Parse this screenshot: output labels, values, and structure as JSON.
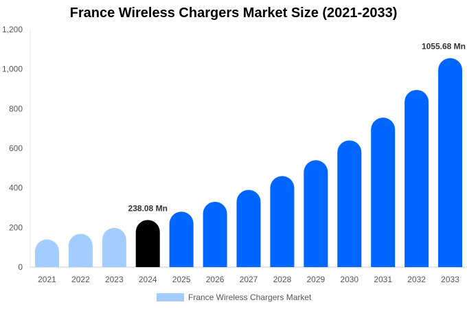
{
  "chart_data": {
    "type": "bar",
    "title": "France Wireless Chargers Market Size (2021-2033)",
    "xlabel": "",
    "ylabel": "",
    "categories": [
      "2021",
      "2022",
      "2023",
      "2024",
      "2025",
      "2026",
      "2027",
      "2028",
      "2029",
      "2030",
      "2031",
      "2032",
      "2033"
    ],
    "series": [
      {
        "name": "France Wireless Chargers Market",
        "values": [
          140,
          168,
          198,
          238.08,
          280,
          330,
          390,
          460,
          540,
          640,
          755,
          895,
          1055.68
        ]
      }
    ],
    "ylim": [
      0,
      1200
    ],
    "yticks": [
      "0",
      "200",
      "400",
      "600",
      "800",
      "1,000",
      "1,200"
    ],
    "ytick_values": [
      0,
      200,
      400,
      600,
      800,
      1000,
      1200
    ],
    "data_labels": [
      {
        "category": "2024",
        "text": "238.08 Mn"
      },
      {
        "category": "2033",
        "text": "1055.68 Mn"
      }
    ],
    "colors": {
      "historical": "#a3cdfd",
      "current": "#000000",
      "forecast": "#0066ff",
      "legend": "#a3cdfd"
    },
    "bar_color_groups": [
      "historical",
      "historical",
      "historical",
      "current",
      "forecast",
      "forecast",
      "forecast",
      "forecast",
      "forecast",
      "forecast",
      "forecast",
      "forecast",
      "forecast"
    ],
    "grid": false,
    "legend_position": "bottom"
  }
}
